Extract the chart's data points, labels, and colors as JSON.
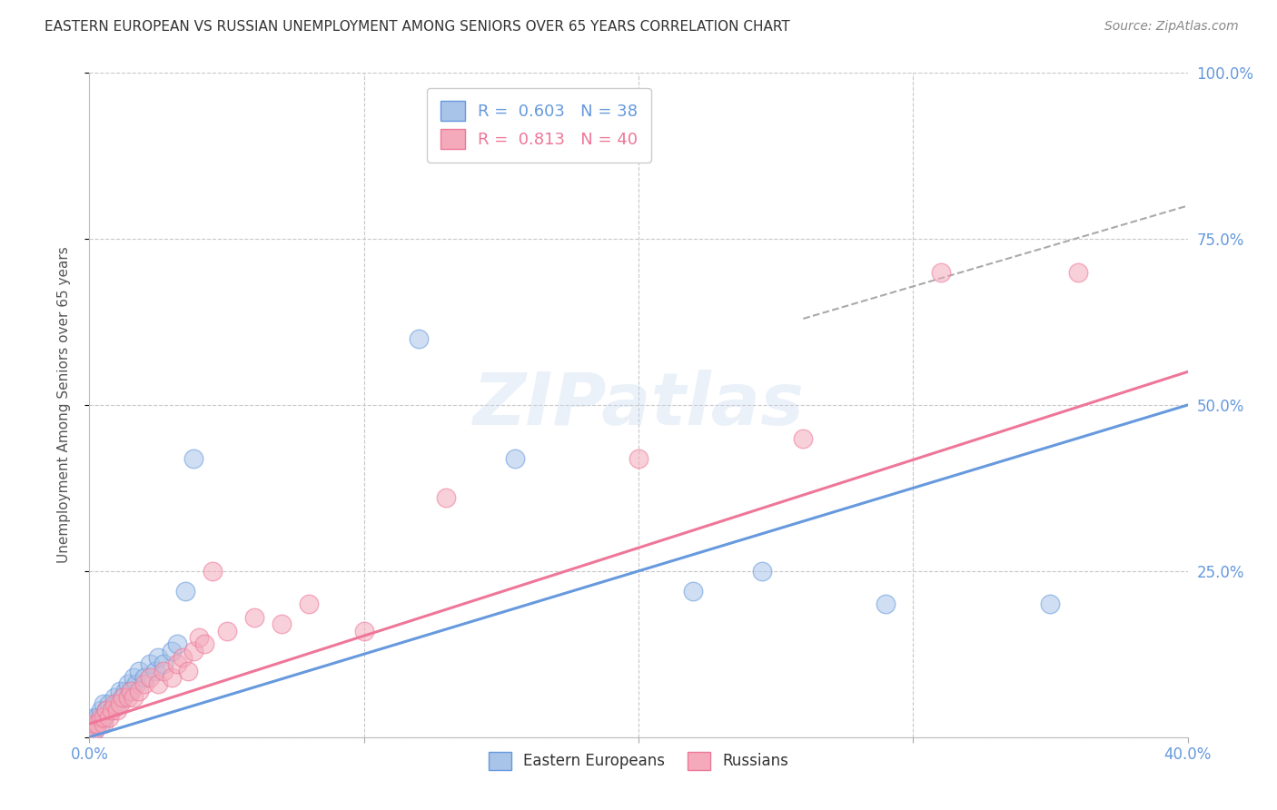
{
  "title": "EASTERN EUROPEAN VS RUSSIAN UNEMPLOYMENT AMONG SENIORS OVER 65 YEARS CORRELATION CHART",
  "source": "Source: ZipAtlas.com",
  "ylabel": "Unemployment Among Seniors over 65 years",
  "xlim": [
    0.0,
    0.4
  ],
  "ylim": [
    0.0,
    1.0
  ],
  "xticks": [
    0.0,
    0.1,
    0.2,
    0.3,
    0.4
  ],
  "xticklabels": [
    "0.0%",
    "",
    "",
    "",
    "40.0%"
  ],
  "yticks": [
    0.0,
    0.25,
    0.5,
    0.75,
    1.0
  ],
  "yticklabels": [
    "",
    "25.0%",
    "50.0%",
    "75.0%",
    "100.0%"
  ],
  "bg_color": "#ffffff",
  "grid_color": "#c8c8c8",
  "watermark": "ZIPatlas",
  "legend_R1": "0.603",
  "legend_N1": "38",
  "legend_R2": "0.813",
  "legend_N2": "40",
  "color_blue": "#a8c4e8",
  "color_pink": "#f4aabb",
  "color_blue_line": "#6699dd",
  "color_pink_line": "#ee7799",
  "color_axis_text": "#6699dd",
  "eastern_x": [
    0.001,
    0.001,
    0.002,
    0.002,
    0.003,
    0.003,
    0.004,
    0.004,
    0.005,
    0.005,
    0.006,
    0.007,
    0.008,
    0.009,
    0.01,
    0.011,
    0.012,
    0.013,
    0.014,
    0.015,
    0.016,
    0.017,
    0.018,
    0.02,
    0.022,
    0.024,
    0.025,
    0.027,
    0.03,
    0.032,
    0.035,
    0.038,
    0.12,
    0.155,
    0.22,
    0.245,
    0.29,
    0.35
  ],
  "eastern_y": [
    0.01,
    0.02,
    0.01,
    0.03,
    0.02,
    0.03,
    0.02,
    0.04,
    0.03,
    0.05,
    0.04,
    0.05,
    0.04,
    0.06,
    0.05,
    0.07,
    0.06,
    0.07,
    0.08,
    0.07,
    0.09,
    0.08,
    0.1,
    0.09,
    0.11,
    0.1,
    0.12,
    0.11,
    0.13,
    0.14,
    0.22,
    0.42,
    0.6,
    0.42,
    0.22,
    0.25,
    0.2,
    0.2
  ],
  "russian_x": [
    0.001,
    0.002,
    0.002,
    0.003,
    0.004,
    0.005,
    0.005,
    0.006,
    0.007,
    0.008,
    0.009,
    0.01,
    0.011,
    0.012,
    0.014,
    0.015,
    0.016,
    0.018,
    0.02,
    0.022,
    0.025,
    0.027,
    0.03,
    0.032,
    0.034,
    0.036,
    0.038,
    0.04,
    0.042,
    0.045,
    0.05,
    0.06,
    0.07,
    0.08,
    0.1,
    0.13,
    0.2,
    0.26,
    0.31,
    0.36
  ],
  "russian_y": [
    0.01,
    0.01,
    0.02,
    0.02,
    0.03,
    0.02,
    0.03,
    0.04,
    0.03,
    0.04,
    0.05,
    0.04,
    0.05,
    0.06,
    0.06,
    0.07,
    0.06,
    0.07,
    0.08,
    0.09,
    0.08,
    0.1,
    0.09,
    0.11,
    0.12,
    0.1,
    0.13,
    0.15,
    0.14,
    0.25,
    0.16,
    0.18,
    0.17,
    0.2,
    0.16,
    0.36,
    0.42,
    0.45,
    0.7,
    0.7
  ],
  "blue_line_x": [
    0.0,
    0.4
  ],
  "blue_line_y": [
    0.0,
    0.5
  ],
  "pink_line_x": [
    0.0,
    0.4
  ],
  "pink_line_y": [
    0.02,
    0.55
  ],
  "dash_line_x": [
    0.26,
    0.4
  ],
  "dash_line_y": [
    0.63,
    0.8
  ]
}
